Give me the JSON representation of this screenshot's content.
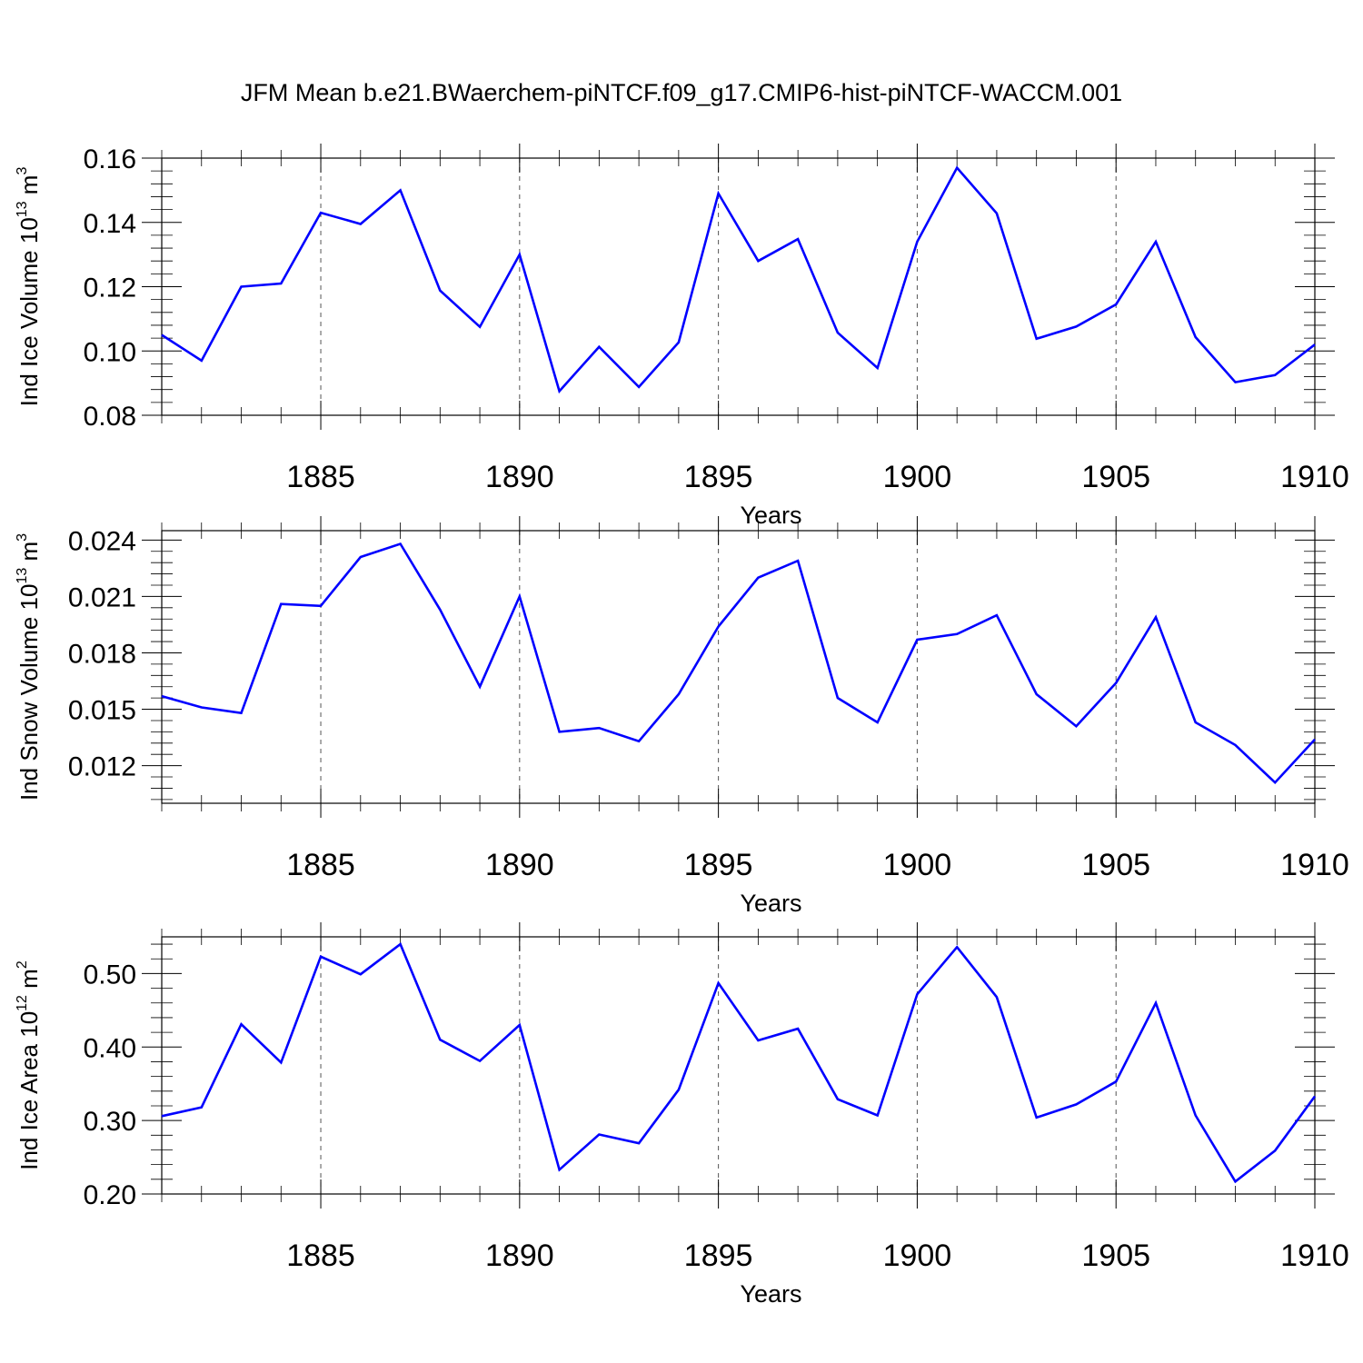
{
  "title": "JFM Mean b.e21.BWaerchem-piNTCF.f09_g17.CMIP6-hist-piNTCF-WACCM.001",
  "line_color": "#0000ff",
  "chart_data": [
    {
      "type": "line",
      "xlabel": "Years",
      "ylabel": {
        "text": "Ind Ice Volume 10",
        "sup": "13",
        "unit": " m",
        "unit_sup": "3"
      },
      "xlim": [
        1881,
        1910
      ],
      "ylim": [
        0.08,
        0.16
      ],
      "x_ticks": [
        1885,
        1890,
        1895,
        1900,
        1905,
        1910
      ],
      "y_ticks": [
        0.08,
        0.1,
        0.12,
        0.14,
        0.16
      ],
      "y_tick_labels": [
        "0.08",
        "0.10",
        "0.12",
        "0.14",
        "0.16"
      ],
      "grid": "vertical dashed at major x ticks",
      "x": [
        1881,
        1882,
        1883,
        1884,
        1885,
        1886,
        1887,
        1888,
        1889,
        1890,
        1891,
        1892,
        1893,
        1894,
        1895,
        1896,
        1897,
        1898,
        1899,
        1900,
        1901,
        1902,
        1903,
        1904,
        1905,
        1906,
        1907,
        1908,
        1909,
        1910
      ],
      "values": [
        0.105,
        0.097,
        0.12,
        0.121,
        0.143,
        0.1395,
        0.15,
        0.1188,
        0.1075,
        0.13,
        0.0875,
        0.1013,
        0.0888,
        0.1027,
        0.149,
        0.128,
        0.1348,
        0.1057,
        0.0947,
        0.134,
        0.157,
        0.1428,
        0.1038,
        0.1076,
        0.1145,
        0.134,
        0.1043,
        0.0903,
        0.0925,
        0.102
      ]
    },
    {
      "type": "line",
      "xlabel": "Years",
      "ylabel": {
        "text": "Ind Snow Volume 10",
        "sup": "13",
        "unit": " m",
        "unit_sup": "3"
      },
      "xlim": [
        1881,
        1910
      ],
      "ylim": [
        0.01,
        0.0245
      ],
      "x_ticks": [
        1885,
        1890,
        1895,
        1900,
        1905,
        1910
      ],
      "y_ticks": [
        0.012,
        0.015,
        0.018,
        0.021,
        0.024
      ],
      "y_tick_labels": [
        "0.012",
        "0.015",
        "0.018",
        "0.021",
        "0.024"
      ],
      "grid": "vertical dashed at major x ticks",
      "x": [
        1881,
        1882,
        1883,
        1884,
        1885,
        1886,
        1887,
        1888,
        1889,
        1890,
        1891,
        1892,
        1893,
        1894,
        1895,
        1896,
        1897,
        1898,
        1899,
        1900,
        1901,
        1902,
        1903,
        1904,
        1905,
        1906,
        1907,
        1908,
        1909,
        1910
      ],
      "values": [
        0.0157,
        0.0151,
        0.0148,
        0.0206,
        0.0205,
        0.0231,
        0.0238,
        0.0203,
        0.0162,
        0.021,
        0.0138,
        0.014,
        0.0133,
        0.0158,
        0.0194,
        0.022,
        0.0229,
        0.0156,
        0.0143,
        0.0187,
        0.019,
        0.02,
        0.0158,
        0.0141,
        0.0164,
        0.0199,
        0.0143,
        0.0131,
        0.0111,
        0.0134
      ]
    },
    {
      "type": "line",
      "xlabel": "Years",
      "ylabel": {
        "text": "Ind Ice Area 10",
        "sup": "12",
        "unit": " m",
        "unit_sup": "2"
      },
      "xlim": [
        1881,
        1910
      ],
      "ylim": [
        0.2,
        0.55
      ],
      "x_ticks": [
        1885,
        1890,
        1895,
        1900,
        1905,
        1910
      ],
      "y_ticks": [
        0.2,
        0.3,
        0.4,
        0.5
      ],
      "y_tick_labels": [
        "0.20",
        "0.30",
        "0.40",
        "0.50"
      ],
      "grid": "vertical dashed at major x ticks",
      "x": [
        1881,
        1882,
        1883,
        1884,
        1885,
        1886,
        1887,
        1888,
        1889,
        1890,
        1891,
        1892,
        1893,
        1894,
        1895,
        1896,
        1897,
        1898,
        1899,
        1900,
        1901,
        1902,
        1903,
        1904,
        1905,
        1906,
        1907,
        1908,
        1909,
        1910
      ],
      "values": [
        0.306,
        0.318,
        0.431,
        0.379,
        0.523,
        0.499,
        0.54,
        0.41,
        0.381,
        0.43,
        0.233,
        0.281,
        0.269,
        0.342,
        0.487,
        0.409,
        0.425,
        0.329,
        0.307,
        0.472,
        0.536,
        0.468,
        0.304,
        0.322,
        0.353,
        0.46,
        0.307,
        0.217,
        0.259,
        0.333
      ]
    }
  ]
}
